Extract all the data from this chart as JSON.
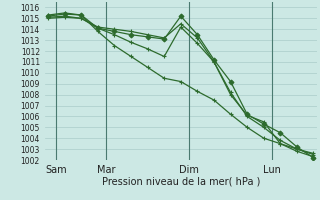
{
  "xlabel": "Pression niveau de la mer( hPa )",
  "bg_color": "#cce8e4",
  "grid_color": "#aaccca",
  "line_color": "#2d6b2d",
  "ylim": [
    1002,
    1016.5
  ],
  "yticks": [
    1002,
    1003,
    1004,
    1005,
    1006,
    1007,
    1008,
    1009,
    1010,
    1011,
    1012,
    1013,
    1014,
    1015,
    1016
  ],
  "xlim": [
    -0.2,
    16.2
  ],
  "xtick_positions": [
    0.5,
    3.5,
    8.5,
    13.5
  ],
  "xtick_labels": [
    "Sam",
    "Mar",
    "Dim",
    "Lun"
  ],
  "vline_positions": [
    0.5,
    3.5,
    8.5,
    13.5
  ],
  "lines": [
    {
      "x": [
        0,
        1,
        2,
        3,
        4,
        5,
        6,
        7,
        8,
        9,
        10,
        11,
        12,
        13,
        14,
        15,
        16
      ],
      "y": [
        1015.2,
        1015.4,
        1015.3,
        1014.1,
        1013.8,
        1013.5,
        1013.3,
        1013.1,
        1015.2,
        1013.5,
        1011.2,
        1009.2,
        1006.2,
        1005.3,
        1004.5,
        1003.2,
        1002.2
      ],
      "marker": "D",
      "ms": 2.5
    },
    {
      "x": [
        0,
        1,
        2,
        3,
        4,
        5,
        6,
        7,
        8,
        9,
        10,
        11,
        12,
        13,
        14,
        15,
        16
      ],
      "y": [
        1015.1,
        1015.2,
        1015.0,
        1014.2,
        1014.0,
        1013.8,
        1013.5,
        1013.2,
        1014.5,
        1013.2,
        1011.0,
        1008.0,
        1006.1,
        1005.5,
        1003.5,
        1002.8,
        1002.3
      ],
      "marker": "+",
      "ms": 3.5
    },
    {
      "x": [
        0,
        1,
        2,
        3,
        4,
        5,
        6,
        7,
        8,
        9,
        10,
        11,
        12,
        13,
        14,
        15,
        16
      ],
      "y": [
        1015.0,
        1015.1,
        1015.0,
        1014.1,
        1013.5,
        1012.8,
        1012.2,
        1011.5,
        1014.2,
        1012.7,
        1011.0,
        1008.2,
        1006.0,
        1005.0,
        1003.8,
        1003.0,
        1002.5
      ],
      "marker": "+",
      "ms": 3.5
    },
    {
      "x": [
        0,
        1,
        2,
        3,
        4,
        5,
        6,
        7,
        8,
        9,
        10,
        11,
        12,
        13,
        14,
        15,
        16
      ],
      "y": [
        1015.3,
        1015.5,
        1015.3,
        1013.8,
        1012.5,
        1011.5,
        1010.5,
        1009.5,
        1009.2,
        1008.3,
        1007.5,
        1006.2,
        1005.0,
        1004.0,
        1003.5,
        1003.0,
        1002.6
      ],
      "marker": "+",
      "ms": 3.5
    }
  ]
}
